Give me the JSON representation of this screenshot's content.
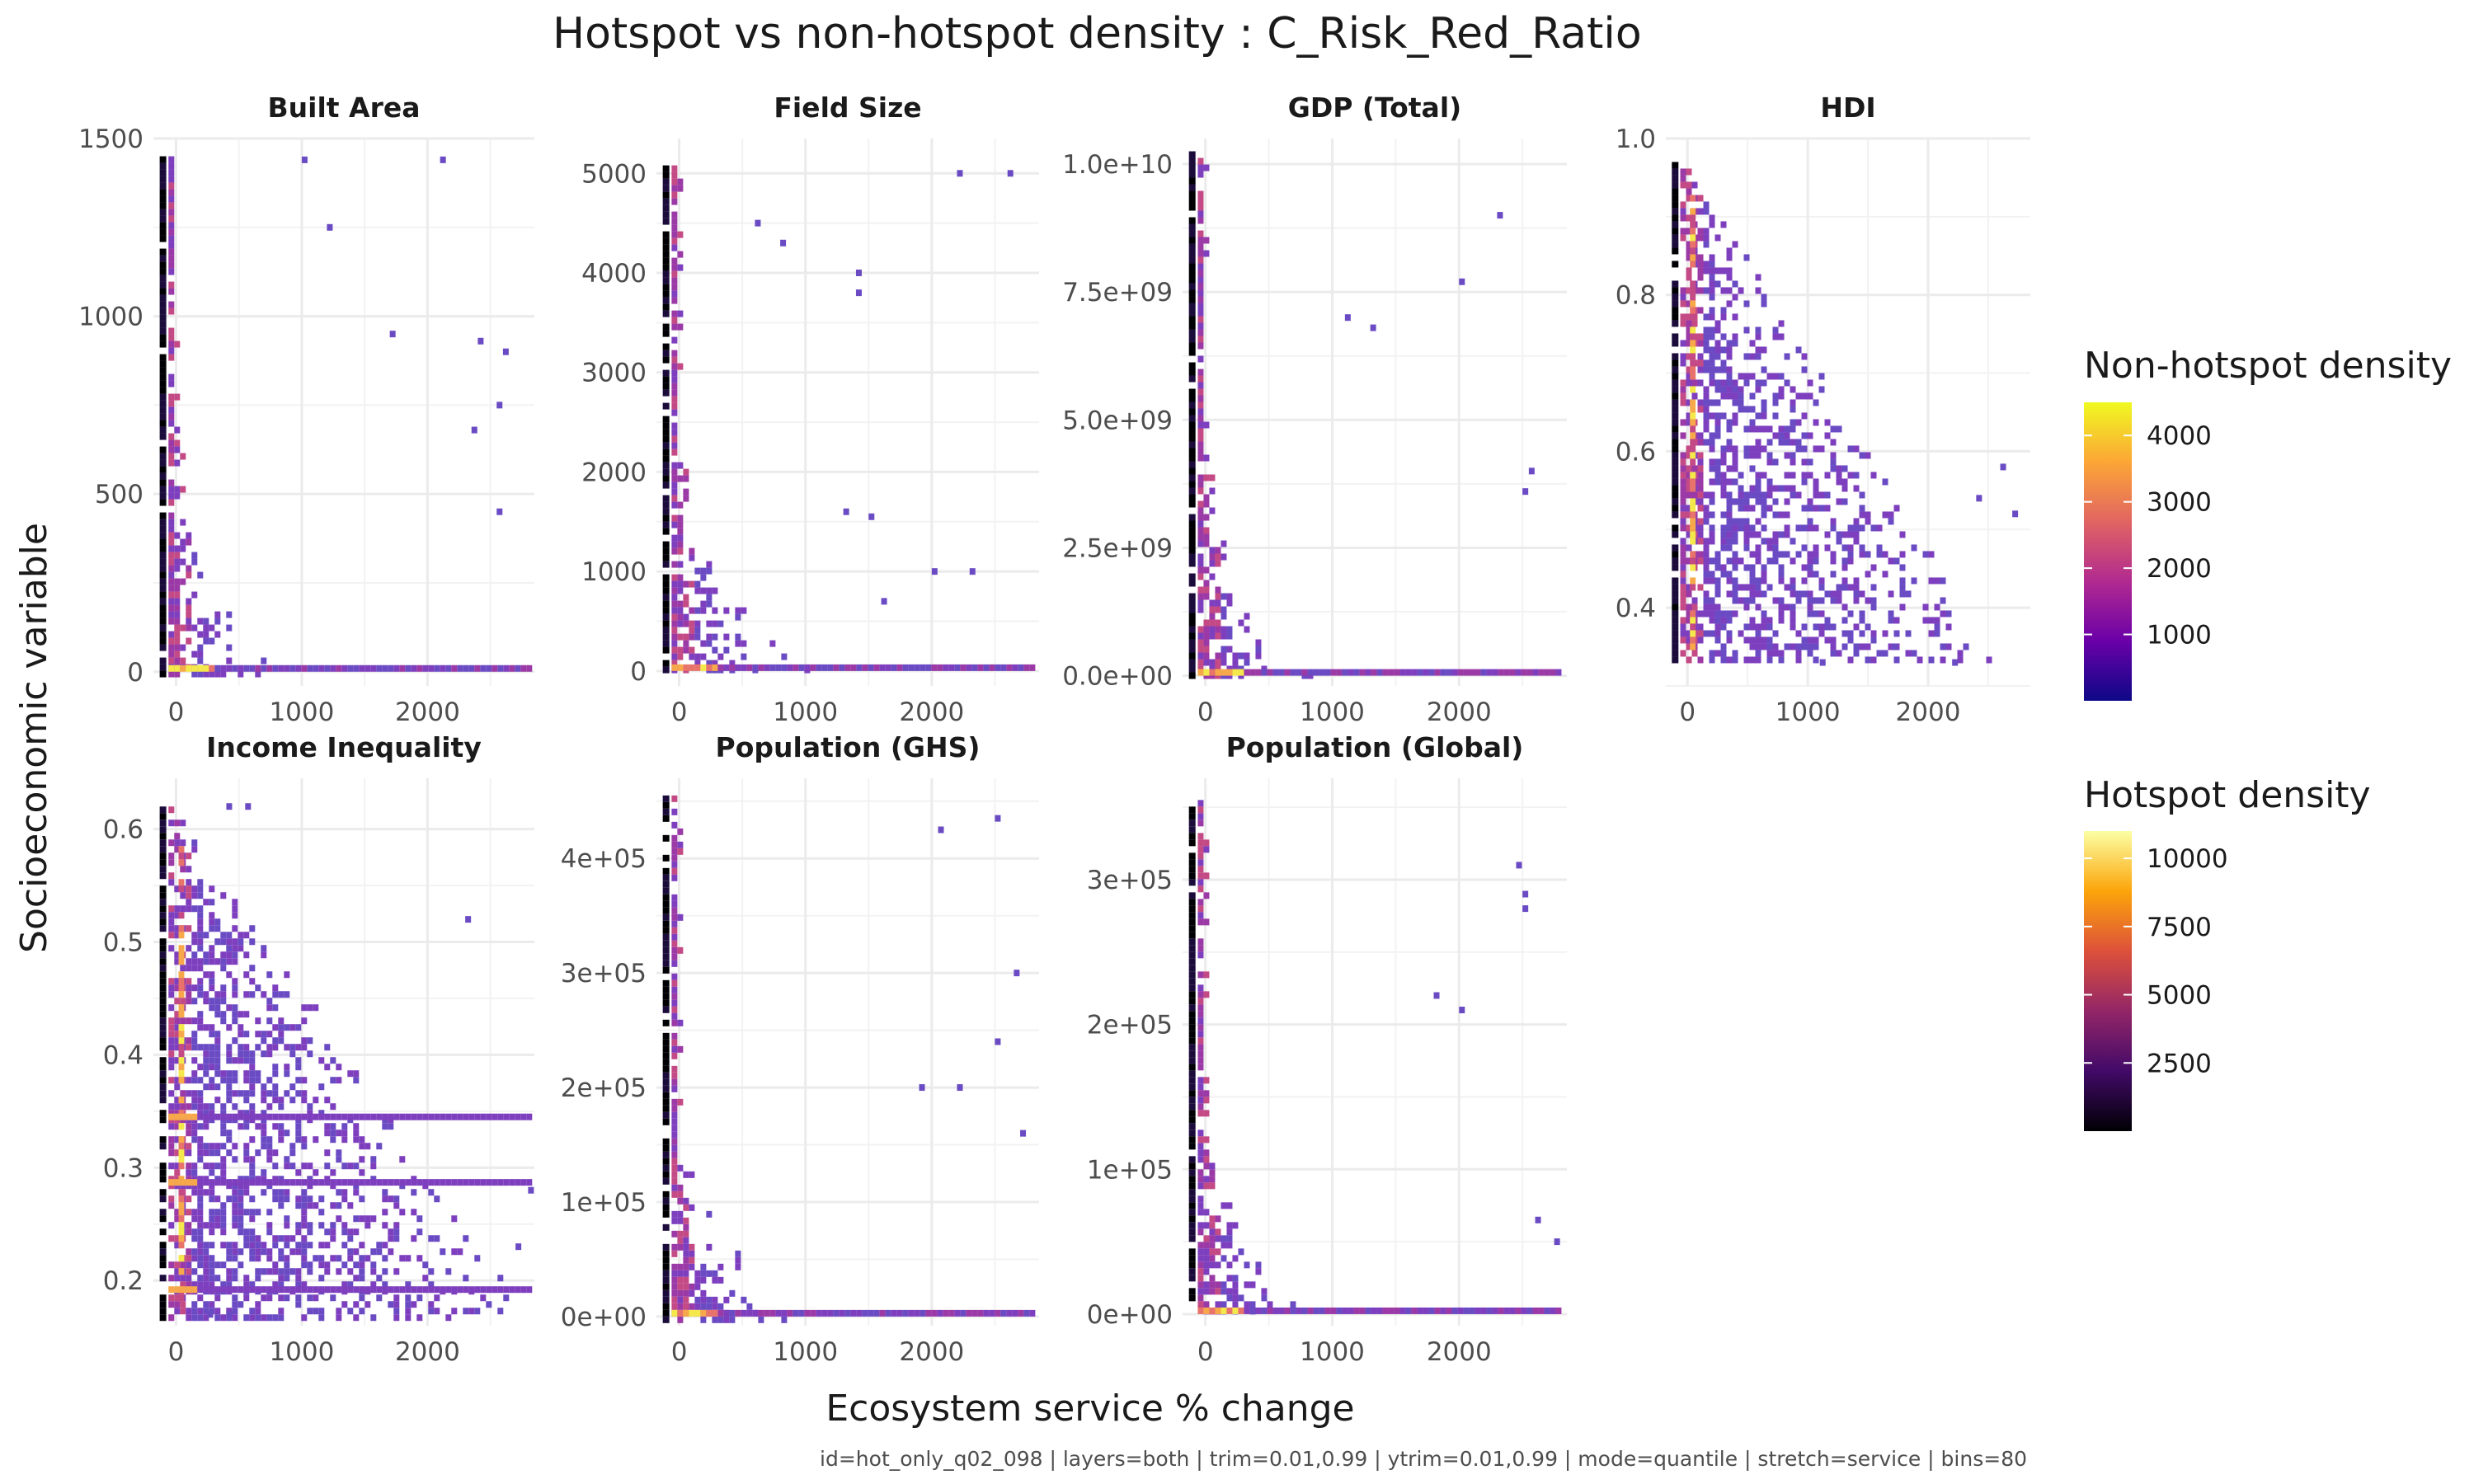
{
  "chart_data": {
    "type": "heatmap",
    "title": "Hotspot vs non-hotspot density : C_Risk_Red_Ratio",
    "xlabel": "Ecosystem service % change",
    "ylabel": "Socioeconomic variable",
    "caption": "id=hot_only_q02_098 | layers=both | trim=0.01,0.99 | ytrim=0.01,0.99 | mode=quantile | stretch=service | bins=80",
    "xlim": [
      -180,
      2850
    ],
    "x_ticks": [
      0,
      1000,
      2000
    ],
    "x_tick_labels": [
      "0",
      "1000",
      "2000"
    ],
    "grid": true,
    "legends": [
      {
        "title": "Non-hotspot density",
        "ticks": [
          1000,
          2000,
          3000,
          4000
        ],
        "tick_labels": [
          "1000",
          "2000",
          "3000",
          "4000"
        ],
        "range": [
          0,
          4500
        ],
        "colors": [
          "#0d0887",
          "#6a00a8",
          "#b12a90",
          "#e16462",
          "#fca636",
          "#f0f921"
        ]
      },
      {
        "title": "Hotspot density",
        "ticks": [
          2500,
          5000,
          7500,
          10000
        ],
        "tick_labels": [
          "2500",
          "5000",
          "7500",
          "10000"
        ],
        "range": [
          0,
          11000
        ],
        "colors": [
          "#000004",
          "#420a68",
          "#932667",
          "#dd513a",
          "#fca50a",
          "#fcffa4"
        ]
      }
    ],
    "panels": [
      {
        "name": "Built Area",
        "ylim": [
          -40,
          1500
        ],
        "y_ticks": [
          0,
          500,
          1000,
          1500
        ],
        "y_tick_labels": [
          "0",
          "500",
          "1000",
          "1500"
        ],
        "data_ymin": 0,
        "data_ymax": 1450,
        "x_spread": 900,
        "y_decay": 0.18,
        "outliers": [
          [
            1000,
            1440
          ],
          [
            2100,
            1440
          ],
          [
            1200,
            1250
          ],
          [
            1700,
            950
          ],
          [
            2400,
            930
          ],
          [
            2600,
            900
          ],
          [
            2550,
            750
          ],
          [
            2350,
            680
          ],
          [
            2550,
            450
          ]
        ]
      },
      {
        "name": "Field Size",
        "ylim": [
          -150,
          5350
        ],
        "y_ticks": [
          0,
          1000,
          2000,
          3000,
          4000,
          5000
        ],
        "y_tick_labels": [
          "0",
          "1000",
          "2000",
          "3000",
          "4000",
          "5000"
        ],
        "data_ymin": 0,
        "data_ymax": 5080,
        "x_spread": 1200,
        "y_decay": 0.05,
        "outliers": [
          [
            600,
            4500
          ],
          [
            800,
            4300
          ],
          [
            1400,
            3800
          ],
          [
            1400,
            4000
          ],
          [
            2200,
            5000
          ],
          [
            2600,
            5000
          ],
          [
            1500,
            1550
          ],
          [
            1300,
            1600
          ],
          [
            2300,
            1000
          ],
          [
            1600,
            700
          ],
          [
            2000,
            1000
          ]
        ]
      },
      {
        "name": "GDP (Total)",
        "ylim": [
          -200000000,
          10500000000
        ],
        "y_ticks": [
          0,
          2500000000,
          5000000000,
          7500000000,
          10000000000
        ],
        "y_tick_labels": [
          "0.0e+00",
          "2.5e+09",
          "5.0e+09",
          "7.5e+09",
          "1.0e+10"
        ],
        "data_ymin": 0,
        "data_ymax": 10250000000,
        "x_spread": 900,
        "y_decay": 0.14,
        "outliers": [
          [
            2300,
            9000000000
          ],
          [
            2000,
            7700000000
          ],
          [
            1300,
            6800000000
          ],
          [
            2550,
            4000000000
          ],
          [
            2500,
            3600000000
          ],
          [
            1100,
            7000000000
          ]
        ]
      },
      {
        "name": "HDI",
        "ylim": [
          0.3,
          1.0
        ],
        "y_ticks": [
          0.4,
          0.6,
          0.8,
          1.0
        ],
        "y_tick_labels": [
          "0.4",
          "0.6",
          "0.8",
          "1.0"
        ],
        "data_ymin": 0.33,
        "data_ymax": 0.97,
        "x_spread": 2600,
        "y_decay": 1.0,
        "outliers": [
          [
            2700,
            0.52
          ],
          [
            2400,
            0.54
          ],
          [
            2200,
            0.33
          ],
          [
            1700,
            0.35
          ],
          [
            1100,
            0.33
          ],
          [
            2600,
            0.58
          ]
        ]
      },
      {
        "name": "Income Inequality",
        "ylim": [
          0.16,
          0.645
        ],
        "y_ticks": [
          0.2,
          0.3,
          0.4,
          0.5,
          0.6
        ],
        "y_tick_labels": [
          "0.2",
          "0.3",
          "0.4",
          "0.5",
          "0.6"
        ],
        "data_ymin": 0.17,
        "data_ymax": 0.62,
        "x_spread": 2800,
        "y_decay": 1.0,
        "bands": [
          0.192,
          0.287,
          0.345
        ],
        "outliers": [
          [
            400,
            0.62
          ],
          [
            550,
            0.62
          ],
          [
            2300,
            0.52
          ],
          [
            2700,
            0.23
          ],
          [
            2800,
            0.28
          ],
          [
            400,
            0.17
          ],
          [
            250,
            0.17
          ]
        ]
      },
      {
        "name": "Population (GHS)",
        "ylim": [
          -8000,
          470000
        ],
        "y_ticks": [
          0,
          100000,
          200000,
          300000,
          400000
        ],
        "y_tick_labels": [
          "0e+00",
          "1e+05",
          "2e+05",
          "3e+05",
          "4e+05"
        ],
        "data_ymin": 0,
        "data_ymax": 455000,
        "x_spread": 1000,
        "y_decay": 0.14,
        "outliers": [
          [
            2050,
            425000
          ],
          [
            2500,
            435000
          ],
          [
            2650,
            300000
          ],
          [
            2500,
            240000
          ],
          [
            2700,
            160000
          ],
          [
            1900,
            200000
          ],
          [
            2200,
            200000
          ]
        ]
      },
      {
        "name": "Population (Global)",
        "ylim": [
          -8000,
          370000
        ],
        "y_ticks": [
          0,
          100000,
          200000,
          300000
        ],
        "y_tick_labels": [
          "0e+00",
          "1e+05",
          "2e+05",
          "3e+05"
        ],
        "data_ymin": 0,
        "data_ymax": 355000,
        "x_spread": 1000,
        "y_decay": 0.14,
        "outliers": [
          [
            2450,
            310000
          ],
          [
            2500,
            290000
          ],
          [
            2500,
            280000
          ],
          [
            1800,
            220000
          ],
          [
            2000,
            210000
          ],
          [
            2600,
            65000
          ],
          [
            2750,
            50000
          ]
        ]
      }
    ]
  }
}
